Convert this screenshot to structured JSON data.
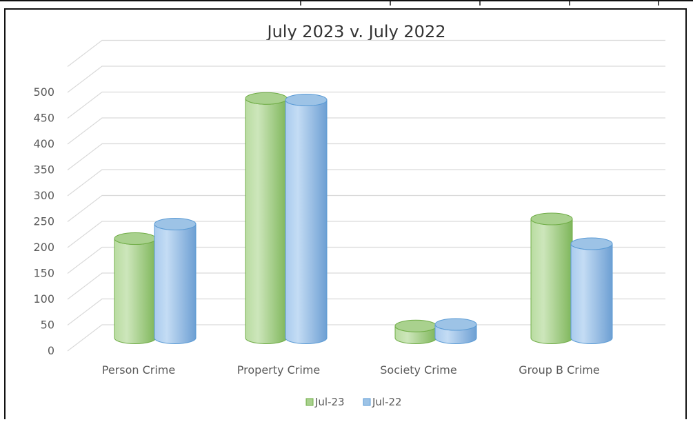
{
  "colors": {
    "jul23_fill": "#a9d18e",
    "jul23_stroke": "#70ad47",
    "jul22_fill": "#9dc3e6",
    "jul22_stroke": "#5b9bd5",
    "grid": "#d9d9d9",
    "text": "#595959"
  },
  "chart_data": {
    "type": "bar",
    "style": "3d-cylinder-clustered",
    "title": "July 2023 v. July 2022",
    "xlabel": "",
    "ylabel": "",
    "categories": [
      "Person Crime",
      "Property Crime",
      "Society Crime",
      "Group B Crime"
    ],
    "series": [
      {
        "name": "Jul-23",
        "values": [
          192,
          463,
          23,
          230
        ]
      },
      {
        "name": "Jul-22",
        "values": [
          220,
          460,
          26,
          182
        ]
      }
    ],
    "ylim": [
      0,
      500
    ],
    "yticks": [
      "0",
      "50",
      "100",
      "150",
      "200",
      "250",
      "300",
      "350",
      "400",
      "450",
      "500"
    ],
    "grid": true,
    "legend_position": "bottom"
  }
}
